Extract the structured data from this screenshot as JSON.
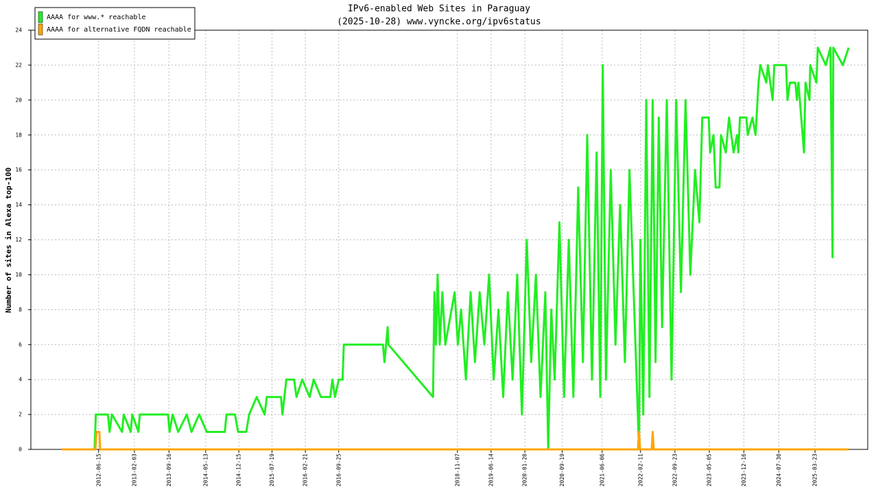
{
  "chart_data": {
    "type": "line",
    "title": "IPv6-enabled Web Sites in Paraguay",
    "subtitle": "(2025-10-28) www.vyncke.org/ipv6status",
    "y_label": "Number of sites in Alexa top-100",
    "ylim": [
      0,
      24
    ],
    "yticks": [
      0,
      2,
      4,
      6,
      8,
      10,
      12,
      14,
      16,
      18,
      20,
      22,
      24
    ],
    "xlim": [
      "2011-04-01",
      "2026-03-01"
    ],
    "xticks": [
      "2012-06-15",
      "2013-02-03",
      "2013-09-16",
      "2014-05-13",
      "2014-12-15",
      "2015-07-19",
      "2016-02-21",
      "2016-09-25",
      "2018-11-07",
      "2019-06-14",
      "2020-01-20",
      "2020-09-19",
      "2021-06-06",
      "2022-02-11",
      "2022-09-23",
      "2023-05-05",
      "2023-12-16",
      "2024-07-30",
      "2025-03-23"
    ],
    "grid": true,
    "legend": "upper left",
    "series": [
      {
        "name": "AAAA for www.* reachable",
        "color": "#22ee22",
        "x": [
          "2011-10-19",
          "2012-05-20",
          "2012-05-28",
          "2012-08-15",
          "2012-08-25",
          "2012-09-10",
          "2012-11-15",
          "2012-11-25",
          "2013-01-10",
          "2013-01-20",
          "2013-03-01",
          "2013-03-10",
          "2013-09-10",
          "2013-09-20",
          "2013-10-10",
          "2013-11-15",
          "2014-01-10",
          "2014-02-10",
          "2014-04-01",
          "2014-05-20",
          "2014-09-15",
          "2014-09-25",
          "2014-11-20",
          "2014-12-10",
          "2015-02-01",
          "2015-02-20",
          "2015-04-10",
          "2015-06-01",
          "2015-06-15",
          "2015-09-15",
          "2015-09-25",
          "2015-10-20",
          "2015-12-10",
          "2015-12-25",
          "2016-02-01",
          "2016-03-20",
          "2016-04-15",
          "2016-06-01",
          "2016-08-01",
          "2016-08-15",
          "2016-09-01",
          "2016-09-25",
          "2016-10-20",
          "2016-10-28",
          "2017-07-10",
          "2017-07-20",
          "2017-08-10",
          "2017-08-15",
          "2018-06-01",
          "2018-06-10",
          "2018-06-20",
          "2018-07-01",
          "2018-07-15",
          "2018-08-01",
          "2018-08-20",
          "2018-10-20",
          "2018-11-10",
          "2018-12-01",
          "2019-01-01",
          "2019-02-01",
          "2019-03-01",
          "2019-04-01",
          "2019-05-01",
          "2019-06-01",
          "2019-07-01",
          "2019-08-01",
          "2019-09-01",
          "2019-10-01",
          "2019-11-01",
          "2019-12-01",
          "2020-01-01",
          "2020-02-01",
          "2020-03-01",
          "2020-04-01",
          "2020-05-01",
          "2020-06-01",
          "2020-06-20",
          "2020-07-10",
          "2020-08-01",
          "2020-09-01",
          "2020-10-01",
          "2020-11-01",
          "2020-12-01",
          "2021-01-01",
          "2021-02-01",
          "2021-03-01",
          "2021-04-01",
          "2021-05-01",
          "2021-05-25",
          "2021-06-10",
          "2021-07-01",
          "2021-08-01",
          "2021-09-01",
          "2021-10-01",
          "2021-11-01",
          "2021-12-01",
          "2022-02-01",
          "2022-02-10",
          "2022-03-01",
          "2022-03-20",
          "2022-04-10",
          "2022-05-01",
          "2022-05-20",
          "2022-06-10",
          "2022-07-01",
          "2022-08-01",
          "2022-09-01",
          "2022-10-01",
          "2022-11-01",
          "2022-12-01",
          "2023-01-01",
          "2023-02-01",
          "2023-03-01",
          "2023-03-20",
          "2023-05-01",
          "2023-05-10",
          "2023-06-01",
          "2023-06-15",
          "2023-07-10",
          "2023-07-20",
          "2023-08-20",
          "2023-09-10",
          "2023-10-10",
          "2023-11-01",
          "2023-11-10",
          "2023-11-20",
          "2024-01-01",
          "2024-01-10",
          "2024-02-10",
          "2024-03-01",
          "2024-03-20",
          "2024-04-01",
          "2024-05-10",
          "2024-05-20",
          "2024-06-20",
          "2024-07-01",
          "2024-09-15",
          "2024-09-25",
          "2024-10-10",
          "2024-11-15",
          "2024-11-25",
          "2024-12-05",
          "2025-01-10",
          "2025-01-20",
          "2025-02-15",
          "2025-02-20",
          "2025-04-01",
          "2025-04-10",
          "2025-06-01",
          "2025-07-01",
          "2025-07-10",
          "2025-07-15",
          "2025-07-20",
          "2025-09-20",
          "2025-10-28"
        ],
        "values": [
          0,
          0,
          2,
          2,
          1,
          2,
          1,
          2,
          1,
          2,
          1,
          2,
          2,
          1,
          2,
          1,
          2,
          1,
          2,
          1,
          1,
          2,
          2,
          1,
          1,
          2,
          3,
          2,
          3,
          3,
          2,
          4,
          4,
          3,
          4,
          3,
          4,
          3,
          3,
          4,
          3,
          4,
          4,
          6,
          6,
          5,
          7,
          6,
          3,
          9,
          6,
          10,
          6,
          9,
          6,
          9,
          6,
          8,
          4,
          9,
          5,
          9,
          6,
          10,
          4,
          8,
          3,
          9,
          4,
          10,
          2,
          12,
          5,
          10,
          3,
          9,
          0,
          8,
          4,
          13,
          3,
          12,
          3,
          15,
          5,
          18,
          4,
          17,
          3,
          22,
          4,
          16,
          6,
          14,
          5,
          16,
          0,
          12,
          2,
          20,
          3,
          20,
          5,
          19,
          7,
          20,
          4,
          20,
          9,
          20,
          10,
          16,
          13,
          19,
          19,
          17,
          18,
          15,
          15,
          18,
          17,
          19,
          17,
          18,
          17,
          19,
          19,
          18,
          19,
          18,
          21,
          22,
          21,
          22,
          20,
          22,
          22,
          20,
          21,
          21,
          20,
          21,
          17,
          21,
          20,
          22,
          21,
          23,
          22,
          23,
          16,
          11,
          23,
          22,
          23
        ]
      },
      {
        "name": "AAAA for alternative FQDN reachable",
        "color": "#ffa500",
        "x": [
          "2011-10-19",
          "2012-05-25",
          "2012-06-01",
          "2012-06-20",
          "2012-06-25",
          "2022-01-25",
          "2022-02-01",
          "2022-02-08",
          "2022-04-25",
          "2022-05-01",
          "2022-05-08",
          "2025-10-28"
        ],
        "values": [
          0,
          0,
          1,
          1,
          0,
          0,
          1,
          0,
          0,
          1,
          0,
          0
        ]
      }
    ]
  }
}
